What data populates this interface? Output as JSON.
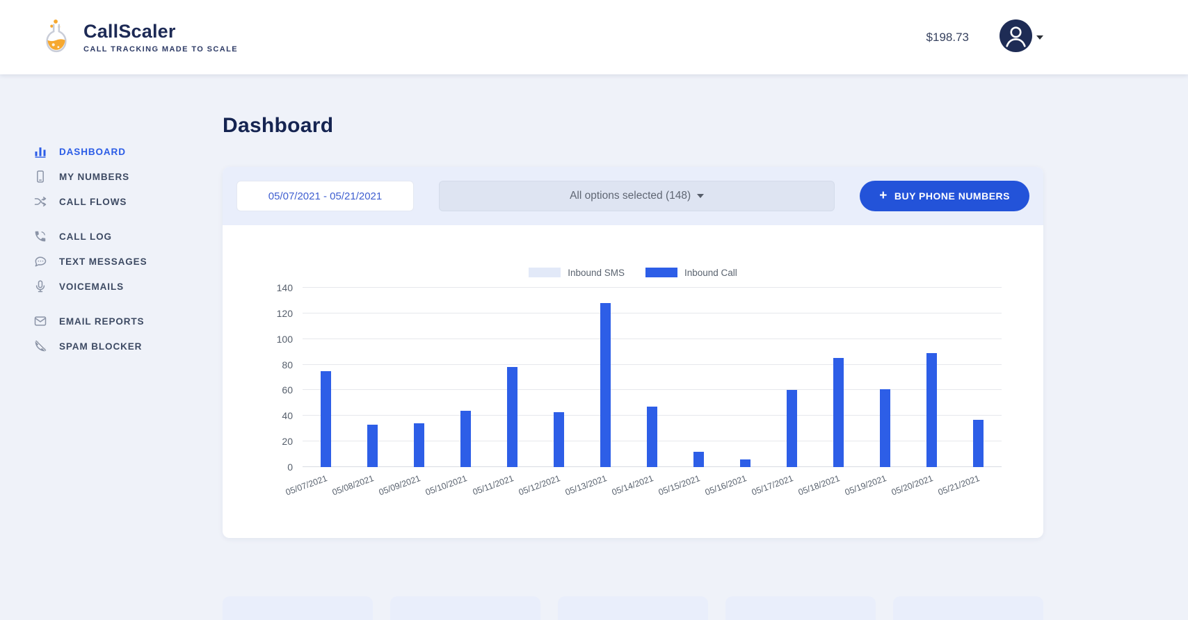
{
  "header": {
    "brand": {
      "name": "CallScaler",
      "tagline": "CALL TRACKING MADE TO SCALE"
    },
    "balance": "$198.73"
  },
  "sidebar": {
    "groups": [
      {
        "items": [
          {
            "label": "DASHBOARD",
            "icon": "bar-chart-icon",
            "active": true
          },
          {
            "label": "MY NUMBERS",
            "icon": "mobile-phone-icon",
            "active": false
          },
          {
            "label": "CALL FLOWS",
            "icon": "shuffle-icon",
            "active": false
          }
        ]
      },
      {
        "items": [
          {
            "label": "CALL LOG",
            "icon": "call-icon",
            "active": false
          },
          {
            "label": "TEXT MESSAGES",
            "icon": "chat-bubble-icon",
            "active": false
          },
          {
            "label": "VOICEMAILS",
            "icon": "microphone-icon",
            "active": false
          }
        ]
      },
      {
        "items": [
          {
            "label": "EMAIL REPORTS",
            "icon": "envelope-icon",
            "active": false
          },
          {
            "label": "SPAM BLOCKER",
            "icon": "phone-slash-icon",
            "active": false
          }
        ]
      }
    ]
  },
  "main": {
    "title": "Dashboard",
    "controls": {
      "date_range": "05/07/2021 - 05/21/2021",
      "options_label": "All options selected (148)",
      "plus": "+",
      "buy_button": "BUY PHONE NUMBERS"
    }
  },
  "chart_data": {
    "type": "bar",
    "title": "",
    "categories": [
      "05/07/2021",
      "05/08/2021",
      "05/09/2021",
      "05/10/2021",
      "05/11/2021",
      "05/12/2021",
      "05/13/2021",
      "05/14/2021",
      "05/15/2021",
      "05/16/2021",
      "05/17/2021",
      "05/18/2021",
      "05/19/2021",
      "05/20/2021",
      "05/21/2021"
    ],
    "series": [
      {
        "name": "Inbound SMS",
        "color": "#e2e9f8",
        "values": [
          0,
          0,
          0,
          0,
          0,
          0,
          0,
          0,
          0,
          0,
          0,
          0,
          0,
          0,
          0
        ]
      },
      {
        "name": "Inbound Call",
        "color": "#2d5ee7",
        "values": [
          75,
          33,
          34,
          44,
          78,
          43,
          128,
          47,
          12,
          6,
          60,
          85,
          61,
          89,
          37
        ]
      }
    ],
    "xlabel": "",
    "ylabel": "",
    "ylim": [
      0,
      140
    ],
    "ytick_step": 20,
    "grid": true,
    "legend_position": "top"
  },
  "bottom_cards": {
    "count": 5
  },
  "colors": {
    "primary_blue": "#2353d9",
    "bar_blue": "#2d5ee7",
    "navy_text": "#152451",
    "card_strip": "#e9eefb",
    "page_bg": "#eff2f9",
    "logo_orange": "#f6a830"
  }
}
